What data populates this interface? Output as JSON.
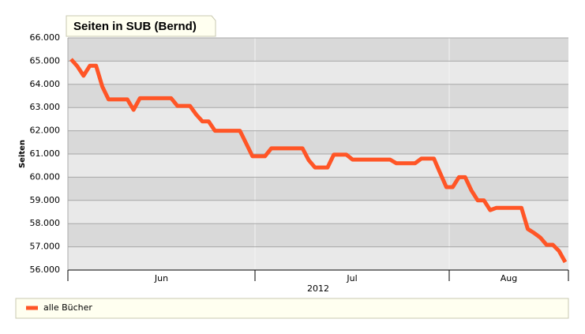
{
  "chart_data": {
    "type": "line",
    "title": "Seiten in SUB (Bernd)",
    "y_label": "Seiten",
    "x_label": "2012",
    "xlabels": [
      "Jun",
      "Jul",
      "Aug"
    ],
    "ylim": [
      56000,
      66000
    ],
    "yticks": [
      {
        "value": 56000,
        "label": "56.000"
      },
      {
        "value": 57000,
        "label": "57.000"
      },
      {
        "value": 58000,
        "label": "58.000"
      },
      {
        "value": 59000,
        "label": "59.000"
      },
      {
        "value": 60000,
        "label": "60.000"
      },
      {
        "value": 61000,
        "label": "61.000"
      },
      {
        "value": 62000,
        "label": "62.000"
      },
      {
        "value": 63000,
        "label": "63.000"
      },
      {
        "value": 64000,
        "label": "64.000"
      },
      {
        "value": 65000,
        "label": "65.000"
      },
      {
        "value": 66000,
        "label": "66.000"
      }
    ],
    "grid": true,
    "series": [
      {
        "name": "alle Bücher",
        "color": "#ff5526",
        "values": [
          65080,
          64780,
          64370,
          64800,
          64800,
          63900,
          63350,
          63350,
          63350,
          63350,
          62900,
          63400,
          63400,
          63400,
          63400,
          63400,
          63400,
          63070,
          63070,
          63070,
          62700,
          62400,
          62400,
          62000,
          62000,
          62000,
          62000,
          62000,
          61450,
          60900,
          60900,
          60900,
          61240,
          61240,
          61240,
          61240,
          61240,
          61240,
          60730,
          60420,
          60420,
          60420,
          60970,
          60970,
          60970,
          60760,
          60760,
          60760,
          60760,
          60760,
          60760,
          60760,
          60600,
          60600,
          60600,
          60600,
          60800,
          60800,
          60800,
          60180,
          59570,
          59570,
          60000,
          60000,
          59430,
          59000,
          59000,
          58580,
          58680,
          58680,
          58680,
          58680,
          58680,
          57770,
          57600,
          57400,
          57090,
          57090,
          56820,
          56340
        ]
      }
    ]
  }
}
